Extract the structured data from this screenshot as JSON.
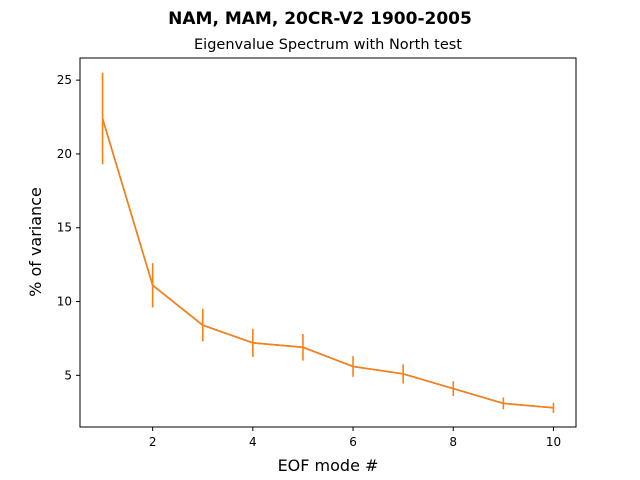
{
  "chart_data": {
    "type": "line",
    "suptitle": "NAM, MAM, 20CR-V2 1900-2005",
    "title": "Eigenvalue Spectrum with North test",
    "xlabel": "EOF mode #",
    "ylabel": "% of variance",
    "xlim": [
      0.55,
      10.45
    ],
    "ylim": [
      1.5,
      26.5
    ],
    "x_ticks": [
      2,
      4,
      6,
      8,
      10
    ],
    "y_ticks": [
      5,
      10,
      15,
      20,
      25
    ],
    "grid": false,
    "line_color": "#ff7f0e",
    "underlay_color": "#1f77b4",
    "series": [
      {
        "x": [
          1,
          2,
          3,
          4,
          5,
          6,
          7,
          8,
          9,
          10
        ],
        "values": [
          22.4,
          11.1,
          8.4,
          7.2,
          6.9,
          5.6,
          5.1,
          4.1,
          3.1,
          2.8
        ],
        "errors": [
          3.1,
          1.5,
          1.1,
          0.95,
          0.9,
          0.7,
          0.65,
          0.5,
          0.4,
          0.35
        ]
      }
    ]
  }
}
